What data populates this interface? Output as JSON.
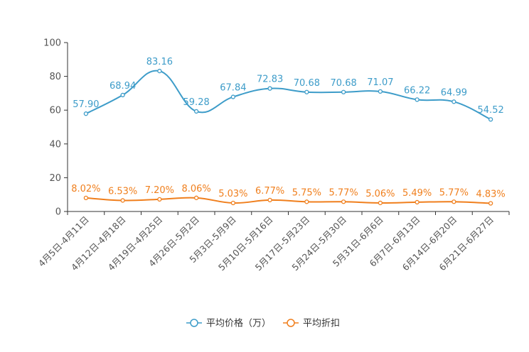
{
  "chart_data": {
    "type": "line",
    "categories": [
      "4月5日-4月11日",
      "4月12日-4月18日",
      "4月19日-4月25日",
      "4月26日-5月2日",
      "5月3日-5月9日",
      "5月10日-5月16日",
      "5月17日-5月23日",
      "5月24日-5月30日",
      "5月31日-6月6日",
      "6月7日-6月13日",
      "6月14日-6月20日",
      "6月21日-6月27日"
    ],
    "series": [
      {
        "name": "平均价格（万）",
        "color": "#3d9cc9",
        "values": [
          57.9,
          68.94,
          83.16,
          59.28,
          67.84,
          72.83,
          70.68,
          70.68,
          71.07,
          66.22,
          64.99,
          54.52
        ],
        "labels": [
          "57.90",
          "68.94",
          "83.16",
          "59.28",
          "67.84",
          "72.83",
          "70.68",
          "70.68",
          "71.07",
          "66.22",
          "64.99",
          "54.52"
        ]
      },
      {
        "name": "平均折扣",
        "color": "#f07f1d",
        "values": [
          8.02,
          6.53,
          7.2,
          8.06,
          5.03,
          6.77,
          5.75,
          5.77,
          5.06,
          5.49,
          5.77,
          4.83
        ],
        "labels": [
          "8.02%",
          "6.53%",
          "7.20%",
          "8.06%",
          "5.03%",
          "6.77%",
          "5.75%",
          "5.77%",
          "5.06%",
          "5.49%",
          "5.77%",
          "4.83%"
        ]
      }
    ],
    "ylim": [
      0,
      100
    ],
    "yticks": [
      "0",
      "20",
      "40",
      "60",
      "80",
      "100"
    ],
    "legend_position": "bottom-center",
    "grid": false
  }
}
